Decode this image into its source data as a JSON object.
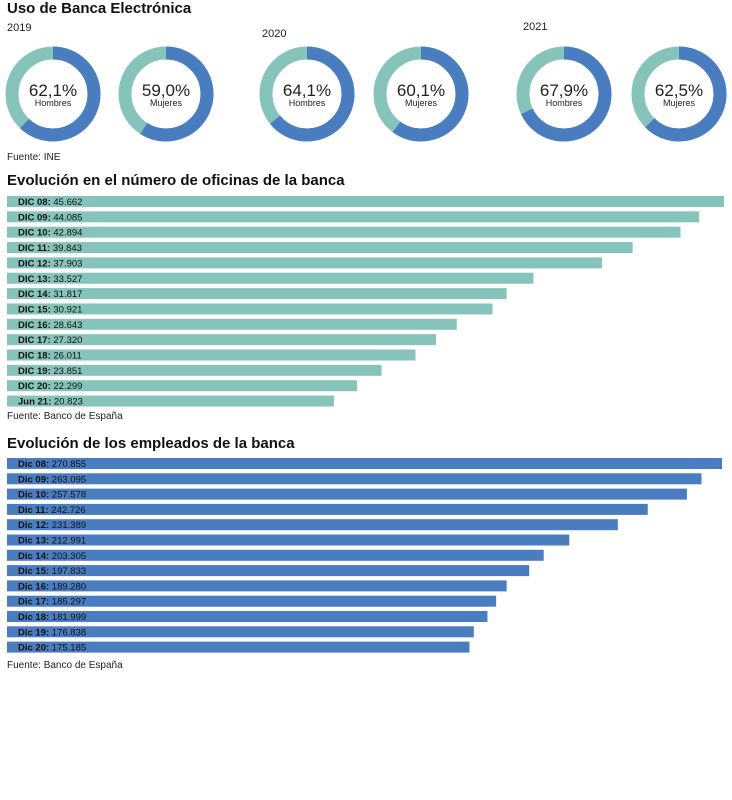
{
  "section1": {
    "title": "Uso de Banca Electrónica",
    "source": "Fuente: INE",
    "colors": {
      "filled": "#4a7cc0",
      "rest": "#86c3bb",
      "text": "#222222"
    },
    "years": [
      {
        "year": "2019",
        "donuts": [
          {
            "value": 62.1,
            "label": "62,1%",
            "sub": "Hombres"
          },
          {
            "value": 59.0,
            "label": "59,0%",
            "sub": "Mujeres"
          }
        ]
      },
      {
        "year": "2020",
        "donuts": [
          {
            "value": 64.1,
            "label": "64,1%",
            "sub": "Hombres"
          },
          {
            "value": 60.1,
            "label": "60,1%",
            "sub": "Mujeres"
          }
        ]
      },
      {
        "year": "2021",
        "donuts": [
          {
            "value": 67.9,
            "label": "67,9%",
            "sub": "Hombres"
          },
          {
            "value": 62.5,
            "label": "62,5%",
            "sub": "Mujeres"
          }
        ]
      }
    ]
  },
  "section2": {
    "title": "Evolución en el número de oficinas de la banca",
    "source": "Fuente: Banco de España"
  },
  "section3": {
    "title": "Evolución de los empleados de la banca",
    "source": "Fuente: Banco de España"
  },
  "chart_data": [
    {
      "type": "bar",
      "orientation": "horizontal",
      "color": "#86c3bb",
      "categories": [
        "DIC 08",
        "DIC 09",
        "DIC 10",
        "DIC 11",
        "DIC 12",
        "DIC 13",
        "DIC 14",
        "DIC 15",
        "DIC 16",
        "DIC 17",
        "DIC 18",
        "DIC 19",
        "DIC 20",
        "Jun 21"
      ],
      "values": [
        45662,
        44085,
        42894,
        39843,
        37903,
        33527,
        31817,
        30921,
        28643,
        27320,
        26011,
        23851,
        22299,
        20823
      ],
      "value_labels": [
        "45.662",
        "44.085",
        "42.894",
        "39.843",
        "37.903",
        "33.527",
        "31.817",
        "30.921",
        "28.643",
        "27.320",
        "26.011",
        "23.851",
        "22.299",
        "20.823"
      ]
    },
    {
      "type": "bar",
      "orientation": "horizontal",
      "color": "#4a7cc0",
      "categories": [
        "Dic 08",
        "Dic 09",
        "Dic 10",
        "Dic 11",
        "Dic 12",
        "Dic 13",
        "Dic 14",
        "Dic 15",
        "Dic 16",
        "Dic 17",
        "Dic 18",
        "Dic 19",
        "Dic 20"
      ],
      "values": [
        270855,
        263095,
        257578,
        242726,
        231389,
        212991,
        203305,
        197833,
        189280,
        185297,
        181999,
        176838,
        175185
      ],
      "value_labels": [
        "270.855",
        "263.095",
        "257.578",
        "242.726",
        "231.389",
        "212.991",
        "203.305",
        "197.833",
        "189.280",
        "185.297",
        "181.999",
        "176.838",
        "175.185"
      ]
    }
  ]
}
